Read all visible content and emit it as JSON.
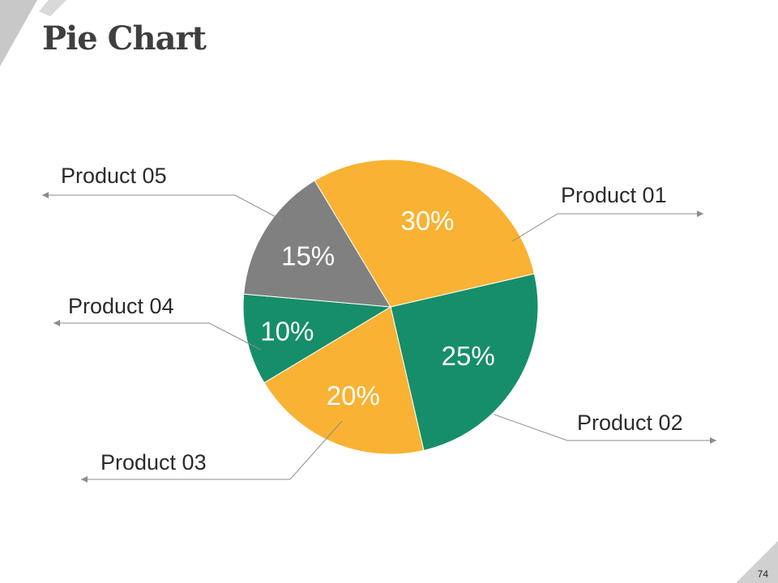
{
  "page": {
    "title": "Pie Chart",
    "page_number": "74"
  },
  "colors": {
    "orange": "#F9B233",
    "green": "#168E69",
    "gray": "#808080",
    "leader": "#8c8c8c",
    "corner": "#c8c8c8"
  },
  "chart_data": {
    "type": "pie",
    "title": "",
    "categories": [
      "Product 01",
      "Product 02",
      "Product 03",
      "Product 04",
      "Product 05"
    ],
    "values": [
      25,
      20,
      10,
      15,
      30
    ],
    "value_labels": [
      "25%",
      "20%",
      "10%",
      "15%",
      "30%"
    ],
    "slice_colors": [
      "#168E69",
      "#F9B233",
      "#168E69",
      "#808080",
      "#F9B233"
    ]
  }
}
